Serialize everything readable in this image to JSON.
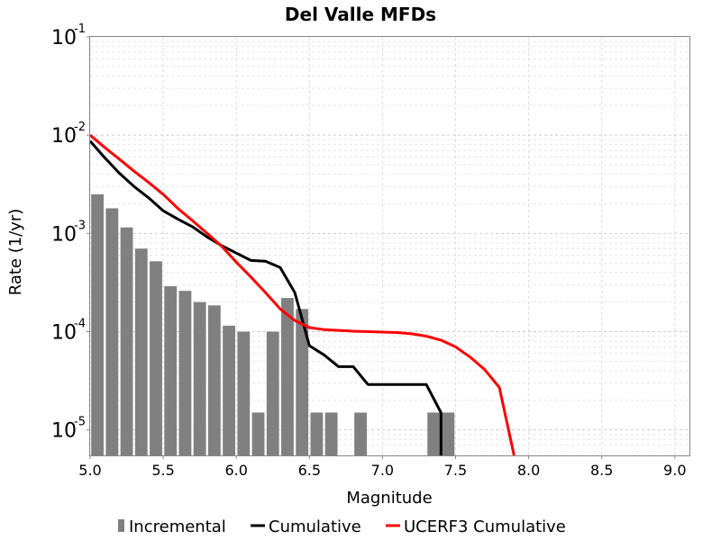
{
  "chart_data": {
    "type": "bar+line",
    "title": "Del Valle MFDs",
    "xlabel": "Magnitude",
    "ylabel": "Rate (1/yr)",
    "xlim": [
      5.0,
      9.1
    ],
    "ylim": [
      5.5e-06,
      0.1
    ],
    "yscale": "log",
    "grid": true,
    "legend_position": "bottom",
    "x_ticks": [
      "5.0",
      "5.5",
      "6.0",
      "6.5",
      "7.0",
      "7.5",
      "8.0",
      "8.5",
      "9.0"
    ],
    "y_ticks": [
      {
        "base": "10",
        "exp": "-5",
        "value": 1e-05
      },
      {
        "base": "10",
        "exp": "-4",
        "value": 0.0001
      },
      {
        "base": "10",
        "exp": "-3",
        "value": 0.001
      },
      {
        "base": "10",
        "exp": "-2",
        "value": 0.01
      },
      {
        "base": "10",
        "exp": "-1",
        "value": 0.1
      }
    ],
    "bin_width": 0.1,
    "series": [
      {
        "name": "Incremental",
        "kind": "bar",
        "color": "#808080",
        "x": [
          5.05,
          5.15,
          5.25,
          5.35,
          5.45,
          5.55,
          5.65,
          5.75,
          5.85,
          5.95,
          6.05,
          6.15,
          6.25,
          6.35,
          6.45,
          6.55,
          6.65,
          6.85,
          7.35,
          7.45
        ],
        "y": [
          0.0025,
          0.0018,
          0.00115,
          0.0007,
          0.00052,
          0.00029,
          0.00026,
          0.0002,
          0.000185,
          0.000115,
          0.0001,
          1.5e-05,
          0.0001,
          0.00022,
          0.00017,
          1.5e-05,
          1.5e-05,
          1.5e-05,
          1.5e-05,
          1.5e-05
        ]
      },
      {
        "name": "Cumulative",
        "kind": "line",
        "color": "#000000",
        "x": [
          5.0,
          5.1,
          5.2,
          5.3,
          5.4,
          5.5,
          5.6,
          5.7,
          5.8,
          5.9,
          6.0,
          6.1,
          6.2,
          6.3,
          6.4,
          6.5,
          6.6,
          6.7,
          6.8,
          6.9,
          7.0,
          7.1,
          7.2,
          7.3,
          7.4,
          7.4
        ],
        "y": [
          0.0087,
          0.0059,
          0.0041,
          0.003,
          0.0023,
          0.0017,
          0.0014,
          0.00117,
          0.00092,
          0.00075,
          0.00063,
          0.00053,
          0.00052,
          0.00045,
          0.00025,
          7.2e-05,
          5.8e-05,
          4.4e-05,
          4.4e-05,
          2.9e-05,
          2.9e-05,
          2.9e-05,
          2.9e-05,
          2.9e-05,
          1.5e-05,
          5.5e-06
        ]
      },
      {
        "name": "UCERF3 Cumulative",
        "kind": "line",
        "color": "#ff0000",
        "x": [
          5.0,
          5.1,
          5.2,
          5.3,
          5.4,
          5.5,
          5.6,
          5.7,
          5.8,
          5.9,
          6.0,
          6.1,
          6.2,
          6.3,
          6.4,
          6.5,
          6.6,
          6.7,
          6.8,
          6.9,
          7.0,
          7.1,
          7.2,
          7.3,
          7.4,
          7.5,
          7.6,
          7.7,
          7.8,
          7.9
        ],
        "y": [
          0.01,
          0.0075,
          0.0057,
          0.0043,
          0.0033,
          0.0025,
          0.0018,
          0.00135,
          0.001,
          0.00074,
          0.00051,
          0.00036,
          0.00025,
          0.00017,
          0.00013,
          0.00011,
          0.000105,
          0.000103,
          0.000101,
          0.0001,
          9.9e-05,
          9.8e-05,
          9.5e-05,
          9e-05,
          8.2e-05,
          7e-05,
          5.5e-05,
          4.1e-05,
          2.7e-05,
          5.5e-06
        ]
      }
    ]
  }
}
